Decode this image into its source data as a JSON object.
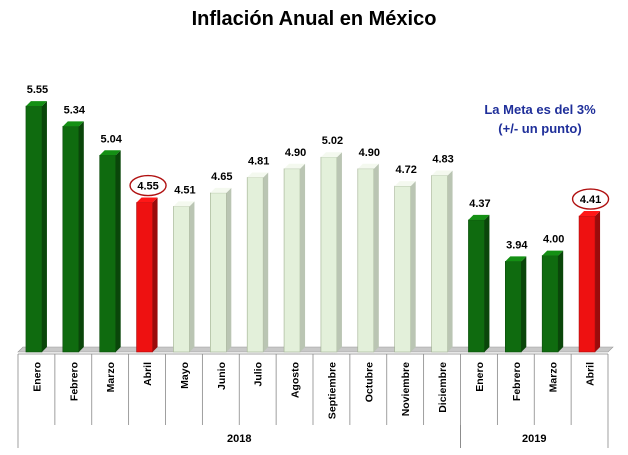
{
  "chart_data": {
    "type": "bar",
    "title": "Inflación Anual en México",
    "annotation": [
      "La Meta es del 3%",
      "(+/- un punto)"
    ],
    "xlabel": "",
    "ylabel": "",
    "ylim": [
      3.0,
      5.8
    ],
    "grid": false,
    "legend": "none",
    "categories": [
      "Enero",
      "Febrero",
      "Marzo",
      "Abril",
      "Mayo",
      "Junio",
      "Julio",
      "Agosto",
      "Septiembre",
      "Octubre",
      "Noviembre",
      "Diciembre",
      "Enero",
      "Febrero",
      "Marzo",
      "Abril"
    ],
    "values": [
      5.55,
      5.34,
      5.04,
      4.55,
      4.51,
      4.65,
      4.81,
      4.9,
      5.02,
      4.9,
      4.72,
      4.83,
      4.37,
      3.94,
      4.0,
      4.41
    ],
    "value_labels": [
      "5.55",
      "5.34",
      "5.04",
      "4.55",
      "4.51",
      "4.65",
      "4.81",
      "4.90",
      "5.02",
      "4.90",
      "4.72",
      "4.83",
      "4.37",
      "3.94",
      "4.00",
      "4.41"
    ],
    "groups": [
      {
        "label": "2018",
        "start": 0,
        "end": 11
      },
      {
        "label": "2019",
        "start": 12,
        "end": 15
      }
    ],
    "bar_styles": [
      "dark",
      "dark",
      "dark",
      "red",
      "light",
      "light",
      "light",
      "light",
      "light",
      "light",
      "light",
      "light",
      "dark",
      "dark",
      "dark",
      "red"
    ],
    "circled_labels": [
      3,
      15
    ],
    "colors": {
      "dark": "#0f6b0f",
      "light": "#e3f0da",
      "red": "#ee1111",
      "circle": "#b01010",
      "floor": "#c8c8c8"
    }
  }
}
